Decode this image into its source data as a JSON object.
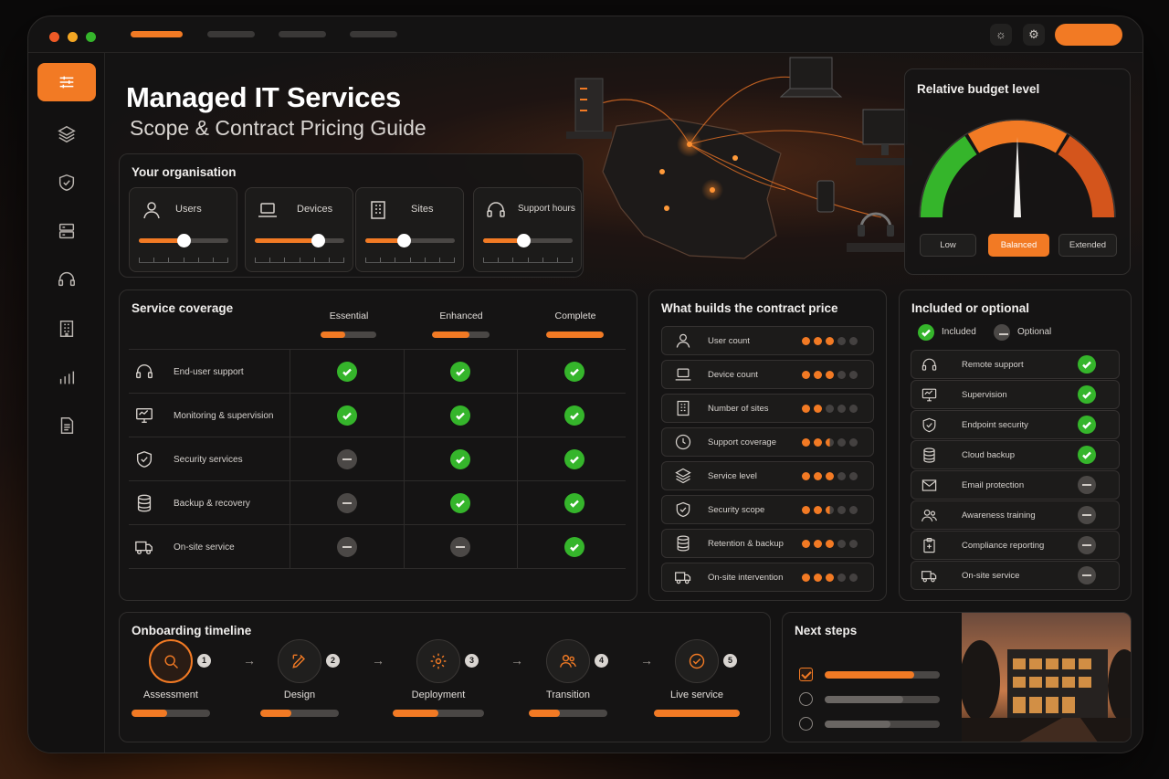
{
  "header": {
    "title": "Managed IT Services",
    "subtitle": "Scope & Contract Pricing Guide"
  },
  "organisation": {
    "title": "Your organisation",
    "items": [
      {
        "label": "Users",
        "icon": "user-icon",
        "level": 0.5
      },
      {
        "label": "Devices",
        "icon": "laptop-icon",
        "level": 0.7
      },
      {
        "label": "Sites",
        "icon": "building-icon",
        "level": 0.43
      },
      {
        "label": "Support hours",
        "icon": "headset-icon",
        "level": 0.45
      }
    ]
  },
  "budget": {
    "title": "Relative budget level",
    "options": [
      "Low",
      "Balanced",
      "Extended"
    ],
    "selected": "Balanced",
    "level": 0.5,
    "colors": {
      "low": "#35b52b",
      "mid": "#f27a24",
      "high": "#d4551c"
    }
  },
  "coverage": {
    "title": "Service coverage",
    "tiers": [
      {
        "name": "Essential",
        "fill": 0.45
      },
      {
        "name": "Enhanced",
        "fill": 0.65
      },
      {
        "name": "Complete",
        "fill": 1.0
      }
    ],
    "rows": [
      {
        "label": "End-user support",
        "icon": "headset-icon",
        "values": [
          "included",
          "included",
          "included"
        ]
      },
      {
        "label": "Monitoring & supervision",
        "icon": "monitor-icon",
        "values": [
          "included",
          "included",
          "included"
        ]
      },
      {
        "label": "Security services",
        "icon": "shield-icon",
        "values": [
          "optional",
          "included",
          "included"
        ]
      },
      {
        "label": "Backup & recovery",
        "icon": "database-icon",
        "values": [
          "optional",
          "included",
          "included"
        ]
      },
      {
        "label": "On-site service",
        "icon": "truck-icon",
        "values": [
          "optional",
          "optional",
          "included"
        ]
      }
    ]
  },
  "pricing": {
    "title": "What builds the contract price",
    "rows": [
      {
        "label": "User count",
        "icon": "user-icon",
        "weight": 3
      },
      {
        "label": "Device count",
        "icon": "laptop-icon",
        "weight": 3
      },
      {
        "label": "Number of sites",
        "icon": "building-icon",
        "weight": 2
      },
      {
        "label": "Support coverage",
        "icon": "clock-icon",
        "weight": 2.5
      },
      {
        "label": "Service level",
        "icon": "layers-icon",
        "weight": 3
      },
      {
        "label": "Security scope",
        "icon": "shield-icon",
        "weight": 2.5
      },
      {
        "label": "Retention & backup",
        "icon": "database-icon",
        "weight": 3
      },
      {
        "label": "On-site intervention",
        "icon": "truck-icon",
        "weight": 3
      }
    ]
  },
  "included": {
    "title": "Included or optional",
    "legend_included": "Included",
    "legend_optional": "Optional",
    "rows": [
      {
        "label": "Remote support",
        "icon": "headset-icon",
        "status": "included"
      },
      {
        "label": "Supervision",
        "icon": "monitor-icon",
        "status": "included"
      },
      {
        "label": "Endpoint security",
        "icon": "shield-icon",
        "status": "included"
      },
      {
        "label": "Cloud backup",
        "icon": "database-icon",
        "status": "included"
      },
      {
        "label": "Email protection",
        "icon": "mail-icon",
        "status": "optional"
      },
      {
        "label": "Awareness training",
        "icon": "people-icon",
        "status": "optional"
      },
      {
        "label": "Compliance reporting",
        "icon": "clipboard-icon",
        "status": "optional"
      },
      {
        "label": "On-site service",
        "icon": "truck-icon",
        "status": "optional"
      }
    ]
  },
  "timeline": {
    "title": "Onboarding timeline",
    "steps": [
      {
        "num": "1",
        "label": "Assessment",
        "icon": "search-icon",
        "progress": 0.45
      },
      {
        "num": "2",
        "label": "Design",
        "icon": "design-icon",
        "progress": 0.4
      },
      {
        "num": "3",
        "label": "Deployment",
        "icon": "gear-icon",
        "progress": 0.5
      },
      {
        "num": "4",
        "label": "Transition",
        "icon": "people-icon",
        "progress": 0.4
      },
      {
        "num": "5",
        "label": "Live service",
        "icon": "check-icon",
        "progress": 1.0
      }
    ]
  },
  "next_steps": {
    "title": "Next steps",
    "items": [
      {
        "done": true,
        "progress": 0.78
      },
      {
        "done": false,
        "progress": 0.68
      },
      {
        "done": false,
        "progress": 0.57
      }
    ]
  }
}
